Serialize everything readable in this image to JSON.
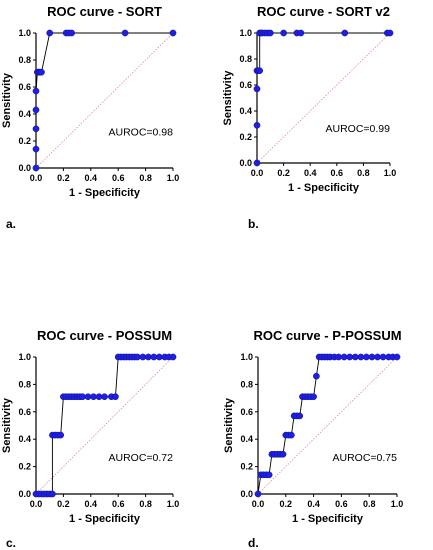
{
  "chart_data": [
    {
      "type": "line",
      "panel_label": "a.",
      "title": "ROC curve - SORT",
      "xlabel": "1 - Specificity",
      "ylabel": "Sensitivity",
      "xlim": [
        0,
        1
      ],
      "ylim": [
        0,
        1
      ],
      "x_ticks": [
        "0.0",
        "0.2",
        "0.4",
        "0.6",
        "0.8",
        "1.0"
      ],
      "y_ticks": [
        "0.0",
        "0.2",
        "0.4",
        "0.6",
        "0.8",
        "1.0"
      ],
      "annotation": "AUROC=0.98",
      "reference_line": true,
      "series": [
        {
          "x": [
            0,
            0,
            0,
            0,
            0,
            0.01,
            0.02,
            0.02,
            0.03,
            0.04,
            0.1,
            0.22,
            0.24,
            0.26,
            0.65,
            1.0
          ],
          "y": [
            0,
            0.14,
            0.29,
            0.43,
            0.57,
            0.71,
            0.71,
            0.71,
            0.71,
            0.71,
            1.0,
            1.0,
            1.0,
            1.0,
            1.0,
            1.0
          ]
        }
      ]
    },
    {
      "type": "line",
      "panel_label": "b.",
      "title": "ROC curve - SORT v2",
      "xlabel": "1 - Specificity",
      "ylabel": "Sensitivity",
      "xlim": [
        0,
        1
      ],
      "ylim": [
        0,
        1
      ],
      "x_ticks": [
        "0.0",
        "0.2",
        "0.4",
        "0.6",
        "0.8",
        "1.0"
      ],
      "y_ticks": [
        "0.0",
        "0.2",
        "0.4",
        "0.6",
        "0.8",
        "1.0"
      ],
      "annotation": "AUROC=0.99",
      "reference_line": true,
      "series": [
        {
          "x": [
            0,
            0,
            0,
            0,
            0.01,
            0.02,
            0.02,
            0.03,
            0.04,
            0.06,
            0.08,
            0.1,
            0.2,
            0.3,
            0.33,
            0.66,
            0.98,
            1.0
          ],
          "y": [
            0,
            0.29,
            0.57,
            0.71,
            0.71,
            0.71,
            1.0,
            1.0,
            1.0,
            1.0,
            1.0,
            1.0,
            1.0,
            1.0,
            1.0,
            1.0,
            1.0,
            1.0
          ]
        }
      ]
    },
    {
      "type": "line",
      "panel_label": "c.",
      "title": "ROC curve - POSSUM",
      "xlabel": "1 - Specificity",
      "ylabel": "Sensitivity",
      "xlim": [
        0,
        1
      ],
      "ylim": [
        0,
        1
      ],
      "x_ticks": [
        "0.0",
        "0.2",
        "0.4",
        "0.6",
        "0.8",
        "1.0"
      ],
      "y_ticks": [
        "0.0",
        "0.2",
        "0.4",
        "0.6",
        "0.8",
        "1.0"
      ],
      "annotation": "AUROC=0.72",
      "reference_line": true,
      "series": [
        {
          "x": [
            0,
            0.02,
            0.04,
            0.06,
            0.08,
            0.1,
            0.12,
            0.12,
            0.14,
            0.16,
            0.18,
            0.2,
            0.22,
            0.24,
            0.26,
            0.28,
            0.3,
            0.32,
            0.34,
            0.38,
            0.42,
            0.46,
            0.5,
            0.55,
            0.58,
            0.6,
            0.62,
            0.64,
            0.66,
            0.68,
            0.7,
            0.72,
            0.74,
            0.78,
            0.82,
            0.86,
            0.9,
            0.94,
            0.97,
            1.0
          ],
          "y": [
            0,
            0,
            0,
            0,
            0,
            0,
            0,
            0.43,
            0.43,
            0.43,
            0.43,
            0.71,
            0.71,
            0.71,
            0.71,
            0.71,
            0.71,
            0.71,
            0.71,
            0.71,
            0.71,
            0.71,
            0.71,
            0.71,
            0.71,
            1.0,
            1.0,
            1.0,
            1.0,
            1.0,
            1.0,
            1.0,
            1.0,
            1.0,
            1.0,
            1.0,
            1.0,
            1.0,
            1.0,
            1.0
          ]
        }
      ]
    },
    {
      "type": "line",
      "panel_label": "d.",
      "title": "ROC curve - P-POSSUM",
      "xlabel": "1 - Specificity",
      "ylabel": "Sensitivity",
      "xlim": [
        0,
        1
      ],
      "ylim": [
        0,
        1
      ],
      "x_ticks": [
        "0.0",
        "0.2",
        "0.4",
        "0.6",
        "0.8",
        "1.0"
      ],
      "y_ticks": [
        "0.0",
        "0.2",
        "0.4",
        "0.6",
        "0.8",
        "1.0"
      ],
      "annotation": "AUROC=0.75",
      "reference_line": true,
      "series": [
        {
          "x": [
            0,
            0.02,
            0.04,
            0.06,
            0.08,
            0.1,
            0.12,
            0.14,
            0.16,
            0.18,
            0.2,
            0.22,
            0.24,
            0.26,
            0.28,
            0.3,
            0.32,
            0.34,
            0.36,
            0.38,
            0.4,
            0.42,
            0.44,
            0.46,
            0.48,
            0.5,
            0.52,
            0.55,
            0.58,
            0.62,
            0.66,
            0.7,
            0.74,
            0.78,
            0.82,
            0.86,
            0.9,
            0.94,
            0.97,
            1.0
          ],
          "y": [
            0,
            0.14,
            0.14,
            0.14,
            0.14,
            0.29,
            0.29,
            0.29,
            0.29,
            0.29,
            0.43,
            0.43,
            0.43,
            0.57,
            0.57,
            0.57,
            0.71,
            0.71,
            0.71,
            0.71,
            0.71,
            0.86,
            1.0,
            1.0,
            1.0,
            1.0,
            1.0,
            1.0,
            1.0,
            1.0,
            1.0,
            1.0,
            1.0,
            1.0,
            1.0,
            1.0,
            1.0,
            1.0,
            1.0,
            1.0
          ]
        }
      ]
    }
  ]
}
